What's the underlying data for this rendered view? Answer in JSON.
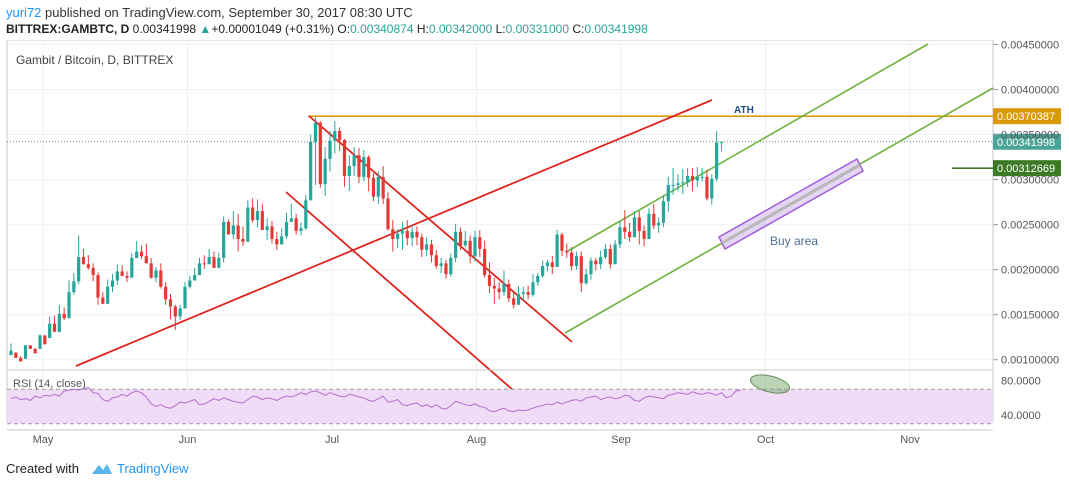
{
  "header": {
    "user": "yuri72",
    "published": "published on TradingView.com, September 30, 2017 08:30 UTC",
    "symbol": "BITTREX:GAMBTC, D",
    "last": "0.00341998",
    "change": "+0.00001049 (+0.31%)",
    "o_label": "O:",
    "o_value": "0.00340874",
    "h_label": "H:",
    "h_value": "0.00342000",
    "l_label": "L:",
    "l_value": "0.00331000",
    "c_label": "C:",
    "c_value": "0.00341998"
  },
  "footer": {
    "created": "Created with",
    "brand": "TradingView"
  },
  "colors": {
    "up": "#26a69a",
    "down": "#e53935",
    "channel": "#e0241e",
    "green_line": "#6db33f",
    "ath": "#d99a0a",
    "buy": "#9c5cdc",
    "rsi_line": "#b46bd0",
    "rsi_band": "#f1dcf7"
  },
  "chart_data": [
    {
      "type": "candlestick",
      "title": "Gambit / Bitcoin, D, BITTREX",
      "x_labels": [
        "May",
        "Jun",
        "Jul",
        "Aug",
        "Sep",
        "Oct",
        "Nov"
      ],
      "y_labels": [
        "0.00100000",
        "0.00150000",
        "0.00200000",
        "0.00250000",
        "0.00300000",
        "0.00350000",
        "0.00400000",
        "0.00450000"
      ],
      "ylim": [
        0.00093,
        0.00455
      ],
      "grid": true,
      "price_tags": [
        {
          "value": 0.00370387,
          "label": "0.00370387",
          "color": "#d99a0a"
        },
        {
          "value": 0.00341998,
          "label": "0.00341998",
          "color": "#4aa397"
        },
        {
          "value": 0.00312669,
          "label": "0.00312669",
          "color": "#3c7a24"
        }
      ],
      "annotations": {
        "ath": "ATH",
        "buy_area": "Buy area"
      },
      "candles": [
        [
          0.00105,
          0.00118,
          0.0011,
          0.00108
        ],
        [
          0.00108,
          0.00108,
          0.00102,
          0.00102
        ],
        [
          0.00102,
          0.00104,
          0.00098,
          0.00101
        ],
        [
          0.00101,
          0.00116,
          0.00116,
          0.00101
        ],
        [
          0.00116,
          0.00116,
          0.00112,
          0.00112
        ],
        [
          0.00112,
          0.00113,
          0.00107,
          0.00112
        ],
        [
          0.00112,
          0.00128,
          0.00127,
          0.00112
        ],
        [
          0.00127,
          0.00127,
          0.00117,
          0.00124
        ],
        [
          0.00124,
          0.00148,
          0.0014,
          0.00124
        ],
        [
          0.0014,
          0.00149,
          0.00131,
          0.00131
        ],
        [
          0.00131,
          0.00161,
          0.00151,
          0.0013
        ],
        [
          0.00151,
          0.00158,
          0.00146,
          0.00144
        ],
        [
          0.00146,
          0.00188,
          0.00175,
          0.00146
        ],
        [
          0.00175,
          0.00196,
          0.00187,
          0.00172
        ],
        [
          0.00187,
          0.00238,
          0.00214,
          0.00184
        ],
        [
          0.00214,
          0.00223,
          0.00206,
          0.00206
        ],
        [
          0.00206,
          0.00216,
          0.00202,
          0.002
        ],
        [
          0.00202,
          0.00207,
          0.00194,
          0.00187
        ],
        [
          0.00194,
          0.00197,
          0.00169,
          0.00161
        ],
        [
          0.00169,
          0.00175,
          0.00162,
          0.00162
        ],
        [
          0.00162,
          0.00189,
          0.00181,
          0.00162
        ],
        [
          0.00181,
          0.00195,
          0.00188,
          0.00175
        ],
        [
          0.00188,
          0.00206,
          0.00198,
          0.00183
        ],
        [
          0.00198,
          0.00205,
          0.00193,
          0.00193
        ],
        [
          0.00193,
          0.00198,
          0.00191,
          0.00186
        ],
        [
          0.00191,
          0.00218,
          0.00213,
          0.00191
        ],
        [
          0.00213,
          0.00232,
          0.0022,
          0.00213
        ],
        [
          0.0022,
          0.00227,
          0.00215,
          0.00212
        ],
        [
          0.00215,
          0.00229,
          0.00207,
          0.00207
        ],
        [
          0.00207,
          0.00213,
          0.00191,
          0.0019
        ],
        [
          0.00191,
          0.00203,
          0.00199,
          0.00186
        ],
        [
          0.00199,
          0.00207,
          0.00181,
          0.00179
        ],
        [
          0.00181,
          0.00186,
          0.00167,
          0.00161
        ],
        [
          0.00167,
          0.00173,
          0.00159,
          0.00145
        ],
        [
          0.00159,
          0.00161,
          0.00148,
          0.00133
        ],
        [
          0.00148,
          0.00161,
          0.00157,
          0.00144
        ],
        [
          0.00157,
          0.00186,
          0.00181,
          0.00157
        ],
        [
          0.00181,
          0.00193,
          0.00188,
          0.00179
        ],
        [
          0.00188,
          0.00202,
          0.00194,
          0.00188
        ],
        [
          0.00194,
          0.00213,
          0.00207,
          0.00194
        ],
        [
          0.00207,
          0.00216,
          0.00206,
          0.00201
        ],
        [
          0.00206,
          0.00223,
          0.00214,
          0.00206
        ],
        [
          0.00214,
          0.0022,
          0.00202,
          0.00202
        ],
        [
          0.00202,
          0.00219,
          0.00213,
          0.00202
        ],
        [
          0.00213,
          0.00259,
          0.00253,
          0.00208
        ],
        [
          0.00253,
          0.00256,
          0.00239,
          0.00239
        ],
        [
          0.00239,
          0.00265,
          0.00249,
          0.00234
        ],
        [
          0.00249,
          0.00262,
          0.00234,
          0.0022
        ],
        [
          0.00234,
          0.00248,
          0.00231,
          0.00226
        ],
        [
          0.00231,
          0.00277,
          0.00269,
          0.00231
        ],
        [
          0.00269,
          0.00279,
          0.00255,
          0.00252
        ],
        [
          0.00255,
          0.00278,
          0.00265,
          0.00247
        ],
        [
          0.00265,
          0.00273,
          0.00244,
          0.00244
        ],
        [
          0.00244,
          0.00257,
          0.00248,
          0.00233
        ],
        [
          0.00248,
          0.00254,
          0.00234,
          0.00229
        ],
        [
          0.00234,
          0.00242,
          0.00228,
          0.00222
        ],
        [
          0.00228,
          0.00246,
          0.00237,
          0.00228
        ],
        [
          0.00237,
          0.00263,
          0.00253,
          0.00234
        ],
        [
          0.00253,
          0.00273,
          0.00257,
          0.00253
        ],
        [
          0.00257,
          0.00262,
          0.00243,
          0.00239
        ],
        [
          0.00243,
          0.00252,
          0.00246,
          0.00238
        ],
        [
          0.00246,
          0.00283,
          0.00277,
          0.00244
        ],
        [
          0.00277,
          0.0035,
          0.00342,
          0.00277
        ],
        [
          0.00342,
          0.00369,
          0.00363,
          0.00294
        ],
        [
          0.00363,
          0.00365,
          0.00295,
          0.00291
        ],
        [
          0.00295,
          0.00336,
          0.00323,
          0.00282
        ],
        [
          0.00323,
          0.00354,
          0.00343,
          0.00309
        ],
        [
          0.00343,
          0.00365,
          0.00354,
          0.00329
        ],
        [
          0.00354,
          0.00358,
          0.00344,
          0.00332
        ],
        [
          0.00344,
          0.00345,
          0.00304,
          0.00292
        ],
        [
          0.00304,
          0.00327,
          0.00315,
          0.00287
        ],
        [
          0.00315,
          0.00336,
          0.00327,
          0.00304
        ],
        [
          0.00327,
          0.00335,
          0.00303,
          0.00296
        ],
        [
          0.00303,
          0.00333,
          0.00325,
          0.00298
        ],
        [
          0.00325,
          0.00327,
          0.00302,
          0.00287
        ],
        [
          0.00302,
          0.00307,
          0.00281,
          0.00276
        ],
        [
          0.00281,
          0.00309,
          0.00303,
          0.00273
        ],
        [
          0.00303,
          0.00315,
          0.00279,
          0.00273
        ],
        [
          0.00279,
          0.00286,
          0.00245,
          0.00243
        ],
        [
          0.00245,
          0.00255,
          0.00234,
          0.0022
        ],
        [
          0.00234,
          0.00245,
          0.0024,
          0.00224
        ],
        [
          0.0024,
          0.00253,
          0.00243,
          0.00222
        ],
        [
          0.00243,
          0.00255,
          0.00235,
          0.00227
        ],
        [
          0.00235,
          0.00249,
          0.00242,
          0.00226
        ],
        [
          0.00242,
          0.00248,
          0.00236,
          0.00227
        ],
        [
          0.00236,
          0.0024,
          0.00222,
          0.00214
        ],
        [
          0.00222,
          0.00236,
          0.00228,
          0.00215
        ],
        [
          0.00228,
          0.00233,
          0.00216,
          0.00208
        ],
        [
          0.00216,
          0.00222,
          0.00204,
          0.00201
        ],
        [
          0.00204,
          0.00213,
          0.00207,
          0.00196
        ],
        [
          0.00207,
          0.00211,
          0.00195,
          0.0019
        ],
        [
          0.00195,
          0.00218,
          0.00213,
          0.00192
        ],
        [
          0.00213,
          0.00251,
          0.00242,
          0.00208
        ],
        [
          0.00242,
          0.00247,
          0.00227,
          0.00222
        ],
        [
          0.00227,
          0.00243,
          0.00232,
          0.00225
        ],
        [
          0.00232,
          0.00238,
          0.00215,
          0.00207
        ],
        [
          0.00215,
          0.00243,
          0.00236,
          0.00209
        ],
        [
          0.00236,
          0.00244,
          0.00223,
          0.00214
        ],
        [
          0.00223,
          0.00232,
          0.00194,
          0.00191
        ],
        [
          0.00194,
          0.00208,
          0.00182,
          0.00174
        ],
        [
          0.00182,
          0.00191,
          0.00179,
          0.00162
        ],
        [
          0.00179,
          0.00186,
          0.00175,
          0.00167
        ],
        [
          0.00175,
          0.00199,
          0.00184,
          0.00171
        ],
        [
          0.00184,
          0.00189,
          0.00168,
          0.00164
        ],
        [
          0.00168,
          0.00175,
          0.00161,
          0.00157
        ],
        [
          0.00161,
          0.00182,
          0.00173,
          0.00161
        ],
        [
          0.00173,
          0.00181,
          0.00175,
          0.00166
        ],
        [
          0.00175,
          0.00182,
          0.00172,
          0.00167
        ],
        [
          0.00172,
          0.00195,
          0.00186,
          0.0017
        ],
        [
          0.00186,
          0.00196,
          0.00193,
          0.00182
        ],
        [
          0.00193,
          0.0021,
          0.00204,
          0.00191
        ],
        [
          0.00204,
          0.00211,
          0.00208,
          0.00198
        ],
        [
          0.00208,
          0.00215,
          0.00203,
          0.00195
        ],
        [
          0.00203,
          0.00244,
          0.00239,
          0.00203
        ],
        [
          0.00239,
          0.00241,
          0.00221,
          0.00215
        ],
        [
          0.00221,
          0.00229,
          0.00219,
          0.00213
        ],
        [
          0.00219,
          0.00225,
          0.00204,
          0.00199
        ],
        [
          0.00204,
          0.0022,
          0.00215,
          0.002
        ],
        [
          0.00215,
          0.0022,
          0.00185,
          0.00175
        ],
        [
          0.00185,
          0.00201,
          0.00195,
          0.00183
        ],
        [
          0.00195,
          0.00214,
          0.0021,
          0.00189
        ],
        [
          0.0021,
          0.00213,
          0.00206,
          0.00199
        ],
        [
          0.00206,
          0.00221,
          0.00214,
          0.00201
        ],
        [
          0.00214,
          0.00228,
          0.00223,
          0.00212
        ],
        [
          0.00223,
          0.00228,
          0.00206,
          0.00201
        ],
        [
          0.00206,
          0.00233,
          0.00228,
          0.00206
        ],
        [
          0.00228,
          0.00254,
          0.00247,
          0.00224
        ],
        [
          0.00247,
          0.00266,
          0.00242,
          0.00234
        ],
        [
          0.00242,
          0.00252,
          0.00236,
          0.00231
        ],
        [
          0.00236,
          0.00265,
          0.00258,
          0.00236
        ],
        [
          0.00258,
          0.00265,
          0.00243,
          0.00228
        ],
        [
          0.00243,
          0.00249,
          0.00234,
          0.00226
        ],
        [
          0.00234,
          0.00268,
          0.00262,
          0.00234
        ],
        [
          0.00262,
          0.00273,
          0.00249,
          0.00245
        ],
        [
          0.00249,
          0.00258,
          0.00252,
          0.00241
        ],
        [
          0.00252,
          0.00283,
          0.00276,
          0.00247
        ],
        [
          0.00276,
          0.00303,
          0.00294,
          0.00264
        ],
        [
          0.00294,
          0.00313,
          0.00294,
          0.00283
        ],
        [
          0.00294,
          0.00306,
          0.00296,
          0.00287
        ],
        [
          0.00296,
          0.00312,
          0.00297,
          0.00284
        ],
        [
          0.00297,
          0.00313,
          0.00304,
          0.00292
        ],
        [
          0.00304,
          0.00313,
          0.00299,
          0.00287
        ],
        [
          0.00299,
          0.00314,
          0.00303,
          0.00292
        ],
        [
          0.00303,
          0.00313,
          0.00303,
          0.00298
        ],
        [
          0.00303,
          0.00311,
          0.00279,
          0.00277
        ],
        [
          0.00279,
          0.00306,
          0.00301,
          0.00272
        ],
        [
          0.00301,
          0.00354,
          0.00341,
          0.00298
        ],
        [
          0.00341,
          0.00342,
          0.00342,
          0.00331
        ]
      ]
    },
    {
      "type": "line",
      "title": "RSI (14, close)",
      "y_labels": [
        "40.0000",
        "80.0000"
      ],
      "ylim": [
        25,
        90
      ],
      "band": [
        30,
        70
      ],
      "values": [
        59,
        61,
        58,
        59,
        57,
        62,
        60,
        63,
        62,
        64,
        62,
        68,
        69,
        70,
        69,
        71,
        72,
        66,
        65,
        58,
        56,
        60,
        61,
        64,
        62,
        66,
        68,
        66,
        61,
        53,
        50,
        52,
        49,
        48,
        51,
        55,
        54,
        56,
        58,
        52,
        53,
        56,
        59,
        57,
        60,
        58,
        56,
        55,
        54,
        58,
        62,
        61,
        58,
        60,
        59,
        57,
        60,
        62,
        61,
        63,
        66,
        64,
        67,
        68,
        66,
        63,
        66,
        64,
        62,
        61,
        64,
        63,
        61,
        60,
        57,
        56,
        59,
        62,
        55,
        56,
        58,
        52,
        51,
        53,
        54,
        50,
        52,
        49,
        52,
        48,
        47,
        51,
        56,
        54,
        52,
        51,
        53,
        50,
        49,
        45,
        44,
        46,
        48,
        45,
        44,
        46,
        45,
        46,
        48,
        50,
        51,
        53,
        52,
        55,
        53,
        55,
        57,
        58,
        56,
        60,
        61,
        62,
        58,
        60,
        61,
        59,
        60,
        63,
        62,
        57,
        56,
        60,
        62,
        61,
        60,
        59,
        63,
        64,
        66,
        65,
        64,
        67,
        65,
        64,
        66,
        65,
        63,
        66,
        60,
        62,
        68,
        69
      ]
    }
  ]
}
